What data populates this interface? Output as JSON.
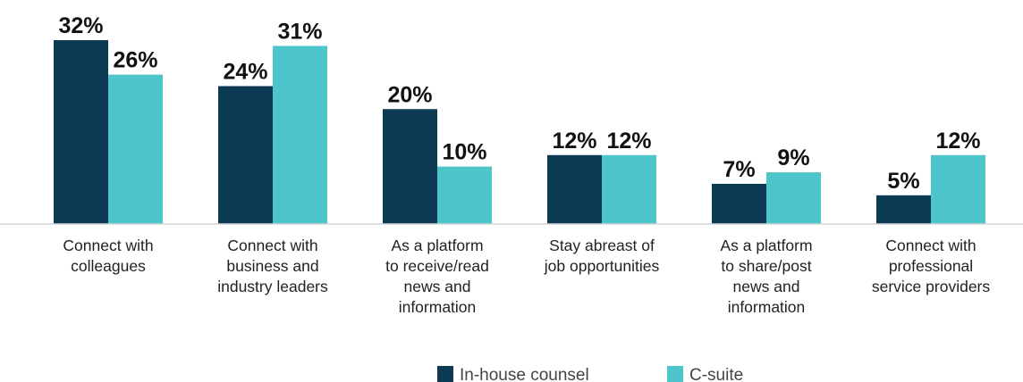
{
  "chart_data": {
    "type": "bar",
    "categories": [
      [
        "Connect with",
        "colleagues"
      ],
      [
        "Connect with",
        "business and",
        "industry leaders"
      ],
      [
        "As a platform",
        "to receive/read",
        "news and",
        "information"
      ],
      [
        "Stay abreast of",
        "job opportunities"
      ],
      [
        "As a platform",
        "to share/post",
        "news and",
        "information"
      ],
      [
        "Connect with",
        "professional",
        "service providers"
      ]
    ],
    "series": [
      {
        "name": "In-house counsel",
        "color": "#0d3a53",
        "values": [
          32,
          24,
          20,
          12,
          7,
          5
        ]
      },
      {
        "name": "C-suite",
        "color": "#4ec4cb",
        "values": [
          26,
          31,
          10,
          12,
          9,
          12
        ]
      }
    ],
    "value_suffix": "%",
    "ylim": [
      0,
      32
    ],
    "grid": false,
    "legend_position": "bottom-center"
  }
}
